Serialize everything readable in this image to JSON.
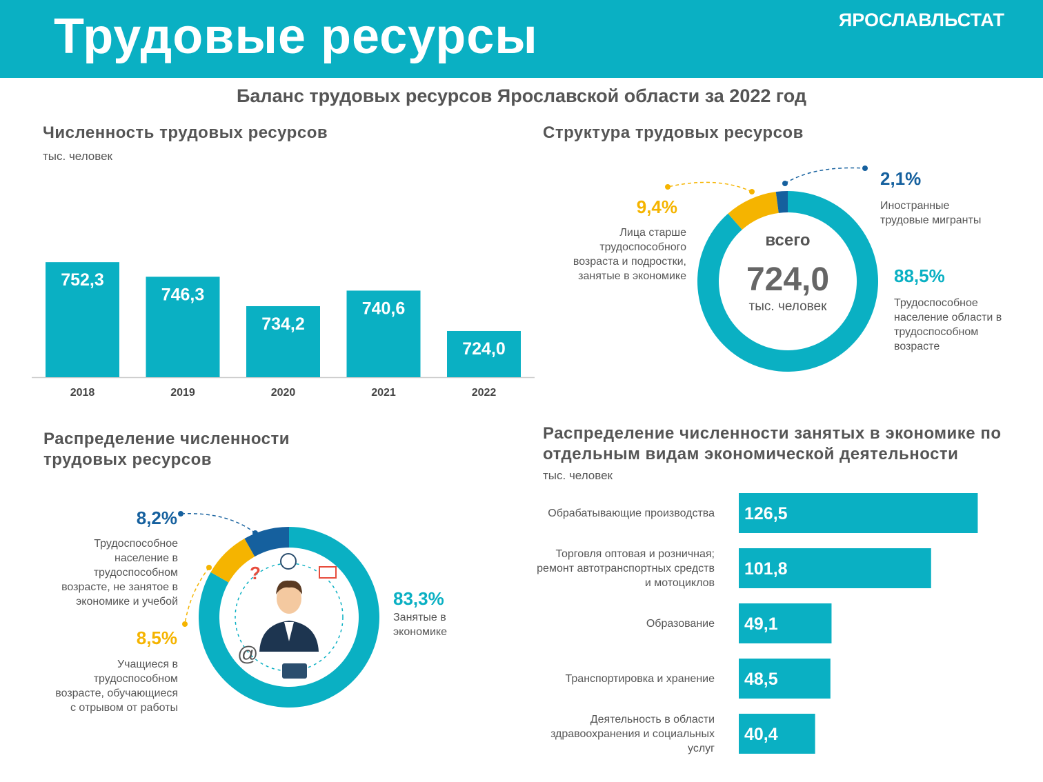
{
  "header": {
    "title": "Трудовые ресурсы",
    "brand": "ЯРОСЛАВЛЬСТАТ",
    "subtitle": "Баланс трудовых ресурсов Ярославской области за 2022 год"
  },
  "chart_data": [
    {
      "type": "bar",
      "title": "Численность трудовых ресурсов",
      "unit": "тыс. человек",
      "categories": [
        "2018",
        "2019",
        "2020",
        "2021",
        "2022"
      ],
      "values": [
        752.3,
        746.3,
        734.2,
        740.6,
        724.0
      ],
      "value_labels": [
        "752,3",
        "746,3",
        "734,2",
        "740,6",
        "724,0"
      ],
      "ylim": [
        705,
        760
      ],
      "color": "#0ab0c3"
    },
    {
      "type": "donut",
      "title": "Структура трудовых ресурсов",
      "center_label": "всего",
      "total": 724.0,
      "total_label": "724,0",
      "unit": "тыс. человек",
      "categories": [
        "Трудоспособное население области в трудоспособном возрасте",
        "Лица старше трудоспособного возраста и подростки, занятые в экономике",
        "Иностранные трудовые мигранты"
      ],
      "values": [
        88.5,
        9.4,
        2.1
      ],
      "value_labels": [
        "88,5%",
        "9,4%",
        "2,1%"
      ],
      "colors": [
        "#0ab0c3",
        "#f5b400",
        "#15609e"
      ]
    },
    {
      "type": "donut",
      "title": "Распределение численности трудовых ресурсов",
      "categories": [
        "Занятые в экономике",
        "Учащиеся в трудоспособном возрасте, обучающиеся с отрывом от работы",
        "Трудоспособное население в трудоспособном возрасте, не занятое в экономике и учебой"
      ],
      "values": [
        83.3,
        8.5,
        8.2
      ],
      "value_labels": [
        "83,3%",
        "8,5%",
        "8,2%"
      ],
      "colors": [
        "#0ab0c3",
        "#f5b400",
        "#15609e"
      ]
    },
    {
      "type": "hbar",
      "title": "Распределение численности занятых в экономике по отдельным видам экономической деятельности",
      "unit": "тыс. человек",
      "categories": [
        "Обрабатывающие производства",
        "Торговля оптовая и розничная; ремонт автотранспортных средств и мотоциклов",
        "Образование",
        "Транспортировка и хранение",
        "Деятельность в области здравоохранения и социальных услуг"
      ],
      "values": [
        126.5,
        101.8,
        49.1,
        48.5,
        40.4
      ],
      "value_labels": [
        "126,5",
        "101,8",
        "49,1",
        "48,5",
        "40,4"
      ],
      "xlim": [
        0,
        130
      ],
      "color": "#0ab0c3"
    }
  ]
}
